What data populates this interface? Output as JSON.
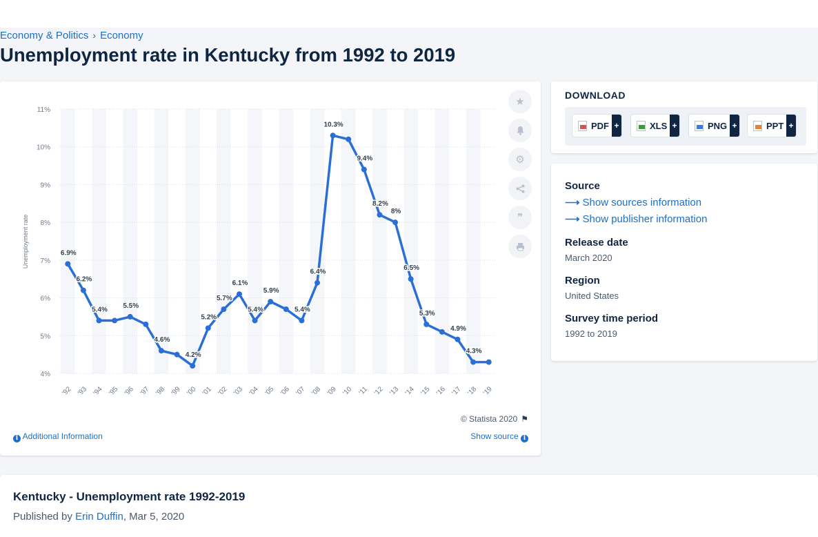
{
  "breadcrumb": {
    "items": [
      "Economy & Politics",
      "Economy"
    ],
    "separator": "›"
  },
  "page_title": "Unemployment rate in Kentucky from 1992 to 2019",
  "chart_tools": [
    "star-icon",
    "bell-icon",
    "gear-icon",
    "share-icon",
    "quote-icon",
    "print-icon"
  ],
  "chart_footer": {
    "copyright": "© Statista 2020",
    "additional_info": "Additional Information",
    "show_source": "Show source"
  },
  "download": {
    "title": "DOWNLOAD",
    "formats": [
      {
        "label": "PDF",
        "icon": "pdf-file-icon",
        "color": "#d9534f"
      },
      {
        "label": "XLS",
        "icon": "xls-file-icon",
        "color": "#3c9a3c"
      },
      {
        "label": "PNG",
        "icon": "png-file-icon",
        "color": "#3b7dd8"
      },
      {
        "label": "PPT",
        "icon": "ppt-file-icon",
        "color": "#e8822c"
      }
    ],
    "plus": "+"
  },
  "info": {
    "source_heading": "Source",
    "sources_link": "Show sources information",
    "publisher_link": "Show publisher information",
    "release_heading": "Release date",
    "release_value": "March 2020",
    "region_heading": "Region",
    "region_value": "United States",
    "period_heading": "Survey time period",
    "period_value": "1992 to 2019"
  },
  "publication": {
    "title": "Kentucky - Unemployment rate 1992-2019",
    "published_by": "Published by",
    "author": "Erin Duffin",
    "date": ", Mar 5, 2020"
  },
  "chart_data": {
    "type": "line",
    "x": [
      "'92",
      "'93",
      "'94",
      "'95",
      "'96",
      "'97",
      "'98",
      "'99",
      "'00",
      "'01",
      "'02",
      "'03",
      "'04",
      "'05",
      "'06",
      "'07",
      "'08",
      "'09",
      "'10",
      "'11",
      "'12",
      "'13",
      "'14",
      "'15",
      "'16",
      "'17",
      "'18",
      "'19"
    ],
    "values": [
      6.9,
      6.2,
      5.4,
      5.4,
      5.5,
      5.3,
      4.6,
      4.5,
      4.2,
      5.2,
      5.7,
      6.1,
      5.4,
      5.9,
      5.7,
      5.4,
      6.4,
      10.3,
      10.2,
      9.4,
      8.2,
      8.0,
      6.5,
      5.3,
      5.1,
      4.9,
      4.3,
      4.3
    ],
    "data_labels": [
      "6.9%",
      "6.2%",
      "5.4%",
      "",
      "5.5%",
      "",
      "4.6%",
      "",
      "4.2%",
      "5.2%",
      "5.7%",
      "6.1%",
      "5.4%",
      "5.9%",
      "",
      "5.4%",
      "6.4%",
      "10.3%",
      "",
      "9.4%",
      "8.2%",
      "8%",
      "6.5%",
      "5.3%",
      "",
      "4.9%",
      "4.3%",
      ""
    ],
    "ylabel": "Unemployment rate",
    "xlabel": "",
    "ylim": [
      4,
      11
    ],
    "yticks": [
      "4%",
      "5%",
      "6%",
      "7%",
      "8%",
      "9%",
      "10%",
      "11%"
    ],
    "grid": true,
    "series_color": "#2a6fd6"
  }
}
